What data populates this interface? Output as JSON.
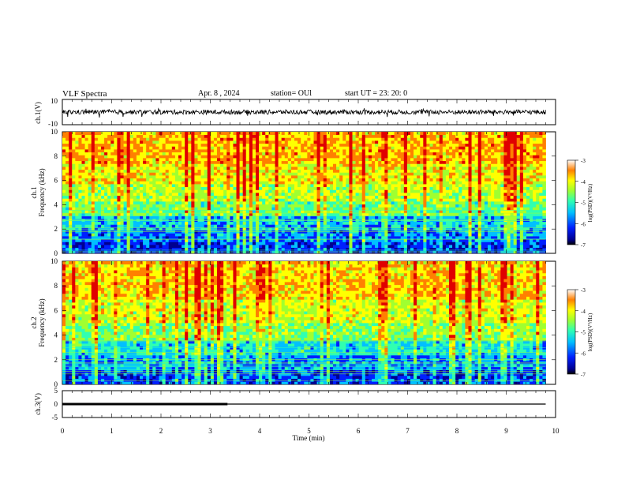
{
  "header": {
    "title": "VLF Spectra",
    "date": "Apr. 8 , 2024",
    "station": "station= OUl",
    "start": "start  UT =   23: 20: 0"
  },
  "colors": {
    "spectrum": [
      "#000090",
      "#0020ff",
      "#00c0ff",
      "#30ffb0",
      "#a0ff30",
      "#ffff00",
      "#ff8000",
      "#e00000"
    ],
    "waveform": "#000000"
  },
  "chart_data": [
    {
      "type": "line",
      "panel": "ch1-waveform",
      "ylabel": "ch.1(V)",
      "ylim": [
        -10,
        10
      ],
      "yticks": [
        "10",
        "-10"
      ],
      "x_range": [
        0,
        9.8
      ],
      "description_values": {
        "baseline": 0,
        "typical_amplitude": 3
      }
    },
    {
      "type": "heatmap",
      "panel": "ch1-spectrogram",
      "ylabel": "ch.1\nFrequency (kHz)",
      "ylim": [
        0,
        10
      ],
      "yticks": [
        "0",
        "2",
        "4",
        "6",
        "8",
        "10"
      ],
      "xlim": [
        0,
        9.8
      ],
      "colorbar": {
        "label": "log(PSD)(V²/Hz)",
        "range": [
          -7,
          -3
        ],
        "ticks": [
          "-3",
          "-4",
          "-5",
          "-6",
          "-7"
        ]
      },
      "bands": [
        {
          "freq": [
            0,
            1.0
          ],
          "level": -6.3
        },
        {
          "freq": [
            1.0,
            2.0
          ],
          "level": -6.0
        },
        {
          "freq": [
            2.0,
            3.2
          ],
          "level": -5.7
        },
        {
          "freq": [
            3.2,
            4.4
          ],
          "level": -5.0
        },
        {
          "freq": [
            4.4,
            5.8
          ],
          "level": -4.6
        },
        {
          "freq": [
            5.8,
            7.5
          ],
          "level": -4.3
        },
        {
          "freq": [
            7.5,
            10
          ],
          "level": -4.0
        }
      ]
    },
    {
      "type": "heatmap",
      "panel": "ch2-spectrogram",
      "ylabel": "ch.2\nFrequency (kHz)",
      "ylim": [
        0,
        10
      ],
      "yticks": [
        "0",
        "2",
        "4",
        "6",
        "8",
        "10"
      ],
      "xlim": [
        0,
        9.8
      ],
      "colorbar": {
        "label": "log(PSD)(V²/Hz)",
        "range": [
          -7,
          -3
        ],
        "ticks": [
          "-3",
          "-4",
          "-5",
          "-6",
          "-7"
        ]
      },
      "bands": [
        {
          "freq": [
            0,
            1.2
          ],
          "level": -6.2
        },
        {
          "freq": [
            1.2,
            2.4
          ],
          "level": -5.9
        },
        {
          "freq": [
            2.4,
            3.6
          ],
          "level": -5.5
        },
        {
          "freq": [
            3.6,
            5.0
          ],
          "level": -4.9
        },
        {
          "freq": [
            5.0,
            7.0
          ],
          "level": -4.5
        },
        {
          "freq": [
            7.0,
            10
          ],
          "level": -4.1
        }
      ]
    },
    {
      "type": "line",
      "panel": "ch3-signal",
      "ylabel": "ch.3(V)",
      "ylim": [
        -5,
        5
      ],
      "yticks": [
        "5",
        "0",
        "-5"
      ],
      "xlabel": "Time (min)",
      "xlim": [
        0,
        10
      ],
      "xticks": [
        "0",
        "1",
        "2",
        "3",
        "4",
        "5",
        "6",
        "7",
        "8",
        "9",
        "10"
      ],
      "series": [
        {
          "x": [
            0,
            3.35
          ],
          "y": [
            0,
            0
          ],
          "style": "thick"
        },
        {
          "x": [
            3.35,
            9.8
          ],
          "y": [
            0,
            0
          ],
          "style": "thin"
        }
      ]
    }
  ]
}
